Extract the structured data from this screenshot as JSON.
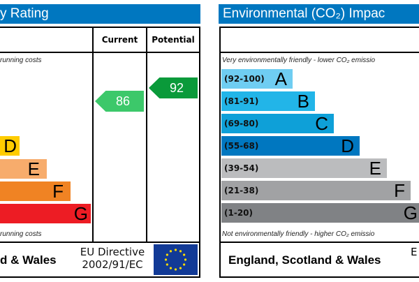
{
  "energy_panel": {
    "title": "y Rating",
    "col_current": "Current",
    "col_potential": "Potential",
    "top_note": "running costs",
    "bottom_note": "running costs",
    "bands": [
      {
        "letter": "D",
        "color": "#ffcc00"
      },
      {
        "letter": "E",
        "color": "#f7ac6c"
      },
      {
        "letter": "F",
        "color": "#f08323"
      },
      {
        "letter": "G",
        "color": "#ed1c24"
      }
    ],
    "current": {
      "value": "86",
      "color": "#3cc86a"
    },
    "potential": {
      "value": "92",
      "color": "#0a9a3a"
    },
    "footer_region": "d & Wales",
    "eu_directive_line1": "EU Directive",
    "eu_directive_line2": "2002/91/EC"
  },
  "environment_panel": {
    "title": "Environmental (CO₂) Impac",
    "top_note": "Very environmentally friendly - lower CO₂ emissio",
    "bottom_note": "Not environmentally friendly - higher CO₂ emissio",
    "bands": [
      {
        "range": "(92-100)",
        "letter": "A",
        "color": "#6fcdf2"
      },
      {
        "range": "(81-91)",
        "letter": "B",
        "color": "#22b5e8"
      },
      {
        "range": "(69-80)",
        "letter": "C",
        "color": "#0ea0d8"
      },
      {
        "range": "(55-68)",
        "letter": "D",
        "color": "#0077c0"
      },
      {
        "range": "(39-54)",
        "letter": "E",
        "color": "#bbbcbe"
      },
      {
        "range": "(21-38)",
        "letter": "F",
        "color": "#a1a2a4"
      },
      {
        "range": "(1-20)",
        "letter": "G",
        "color": "#808285"
      }
    ],
    "footer_region": "England, Scotland & Wales",
    "footer_partial": "E"
  }
}
